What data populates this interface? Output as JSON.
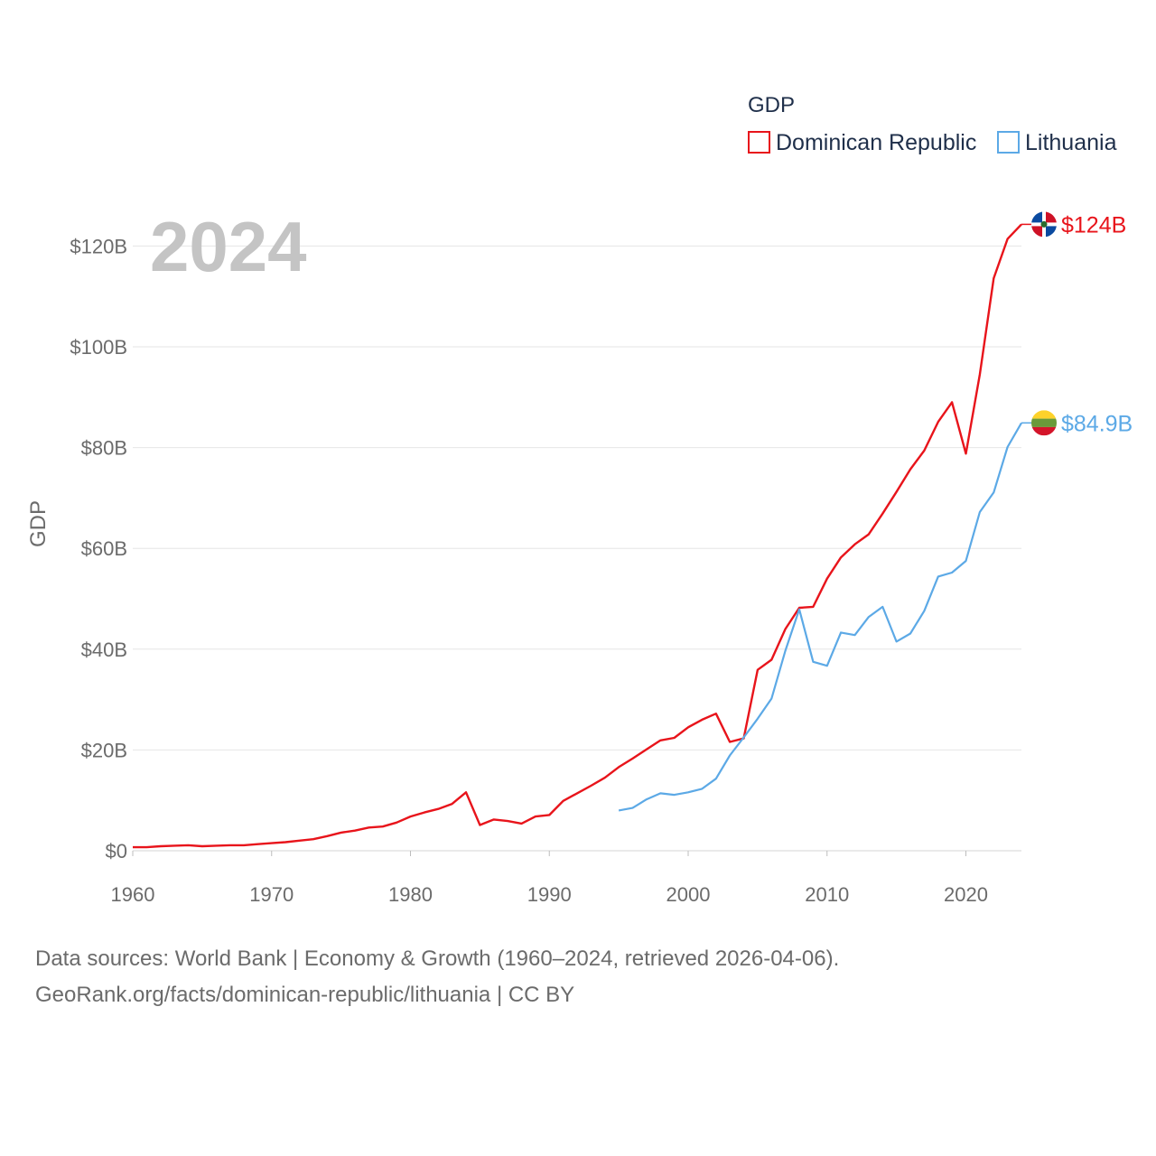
{
  "chart_data": {
    "type": "line",
    "title": "GDP",
    "year_display": "2024",
    "ylabel": "GDP",
    "xlim": [
      1960,
      2024
    ],
    "ylim": [
      0,
      130
    ],
    "x_ticks": [
      1960,
      1970,
      1980,
      1990,
      2000,
      2010,
      2020
    ],
    "y_ticks": [
      0,
      20,
      40,
      60,
      80,
      100,
      120
    ],
    "y_tick_labels": [
      "$0",
      "$20B",
      "$40B",
      "$60B",
      "$80B",
      "$100B",
      "$120B"
    ],
    "grid": true,
    "legend_position": "top-right",
    "series": [
      {
        "name": "Dominican Republic",
        "color": "#e8141b",
        "end_label": "$124B",
        "flag": "dominican-republic-flag",
        "x": [
          1960,
          1961,
          1962,
          1963,
          1964,
          1965,
          1966,
          1967,
          1968,
          1969,
          1970,
          1971,
          1972,
          1973,
          1974,
          1975,
          1976,
          1977,
          1978,
          1979,
          1980,
          1981,
          1982,
          1983,
          1984,
          1985,
          1986,
          1987,
          1988,
          1989,
          1990,
          1991,
          1992,
          1993,
          1994,
          1995,
          1996,
          1997,
          1998,
          1999,
          2000,
          2001,
          2002,
          2003,
          2004,
          2005,
          2006,
          2007,
          2008,
          2009,
          2010,
          2011,
          2012,
          2013,
          2014,
          2015,
          2016,
          2017,
          2018,
          2019,
          2020,
          2021,
          2022,
          2023,
          2024
        ],
        "values": [
          0.7,
          0.7,
          0.9,
          1.0,
          1.1,
          0.9,
          1.0,
          1.1,
          1.1,
          1.3,
          1.5,
          1.7,
          2.0,
          2.3,
          2.9,
          3.6,
          4.0,
          4.6,
          4.8,
          5.6,
          6.8,
          7.6,
          8.3,
          9.3,
          11.6,
          5.1,
          6.2,
          5.9,
          5.4,
          6.8,
          7.1,
          9.9,
          11.4,
          12.9,
          14.5,
          16.6,
          18.3,
          20.1,
          21.9,
          22.4,
          24.5,
          26.0,
          27.2,
          21.6,
          22.3,
          35.9,
          37.9,
          44.0,
          48.2,
          48.4,
          54.0,
          58.2,
          60.8,
          62.8,
          66.9,
          71.2,
          75.7,
          79.4,
          85.1,
          89.0,
          78.8,
          94.5,
          113.6,
          121.4,
          124.3
        ]
      },
      {
        "name": "Lithuania",
        "color": "#5ca9e6",
        "end_label": "$84.9B",
        "flag": "lithuania-flag",
        "x": [
          1995,
          1996,
          1997,
          1998,
          1999,
          2000,
          2001,
          2002,
          2003,
          2004,
          2005,
          2006,
          2007,
          2008,
          2009,
          2010,
          2011,
          2012,
          2013,
          2014,
          2015,
          2016,
          2017,
          2018,
          2019,
          2020,
          2021,
          2022,
          2023,
          2024
        ],
        "values": [
          8.0,
          8.5,
          10.2,
          11.4,
          11.1,
          11.6,
          12.3,
          14.3,
          18.9,
          22.5,
          26.2,
          30.2,
          39.7,
          47.9,
          37.5,
          36.7,
          43.3,
          42.8,
          46.4,
          48.4,
          41.5,
          43.1,
          47.6,
          54.4,
          55.2,
          57.5,
          67.2,
          71.1,
          80.1,
          84.9
        ]
      }
    ]
  },
  "footer": {
    "line1": "Data sources: World Bank | Economy & Growth (1960–2024, retrieved 2026-04-06).",
    "line2": "GeoRank.org/facts/dominican-republic/lithuania | CC BY"
  }
}
